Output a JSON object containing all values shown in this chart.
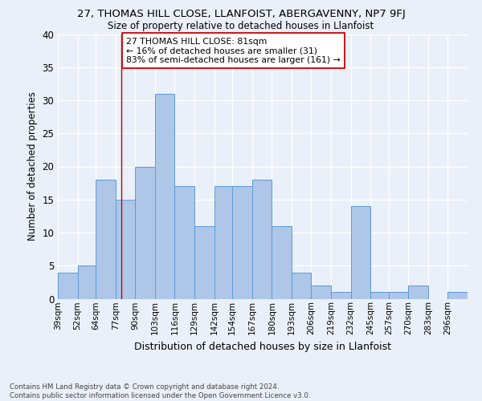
{
  "title": "27, THOMAS HILL CLOSE, LLANFOIST, ABERGAVENNY, NP7 9FJ",
  "subtitle": "Size of property relative to detached houses in Llanfoist",
  "xlabel": "Distribution of detached houses by size in Llanfoist",
  "ylabel": "Number of detached properties",
  "footer_line1": "Contains HM Land Registry data © Crown copyright and database right 2024.",
  "footer_line2": "Contains public sector information licensed under the Open Government Licence v3.0.",
  "bin_labels": [
    "39sqm",
    "52sqm",
    "64sqm",
    "77sqm",
    "90sqm",
    "103sqm",
    "116sqm",
    "129sqm",
    "142sqm",
    "154sqm",
    "167sqm",
    "180sqm",
    "193sqm",
    "206sqm",
    "219sqm",
    "232sqm",
    "245sqm",
    "257sqm",
    "270sqm",
    "283sqm",
    "296sqm"
  ],
  "bin_edges": [
    39,
    52,
    64,
    77,
    90,
    103,
    116,
    129,
    142,
    154,
    167,
    180,
    193,
    206,
    219,
    232,
    245,
    257,
    270,
    283,
    296
  ],
  "bar_heights": [
    4,
    5,
    18,
    15,
    20,
    31,
    17,
    11,
    17,
    17,
    18,
    11,
    4,
    2,
    1,
    14,
    1,
    1,
    2,
    0,
    1
  ],
  "bar_color": "#aec6e8",
  "bar_edge_color": "#5b9bd5",
  "background_color": "#eaf0f9",
  "grid_color": "#ffffff",
  "red_line_x": 81,
  "annotation_line1": "27 THOMAS HILL CLOSE: 81sqm",
  "annotation_line2": "← 16% of detached houses are smaller (31)",
  "annotation_line3": "83% of semi-detached houses are larger (161) →",
  "annotation_box_color": "#ffffff",
  "annotation_box_edge_color": "#cc0000",
  "ylim": [
    0,
    40
  ],
  "yticks": [
    0,
    5,
    10,
    15,
    20,
    25,
    30,
    35,
    40
  ]
}
